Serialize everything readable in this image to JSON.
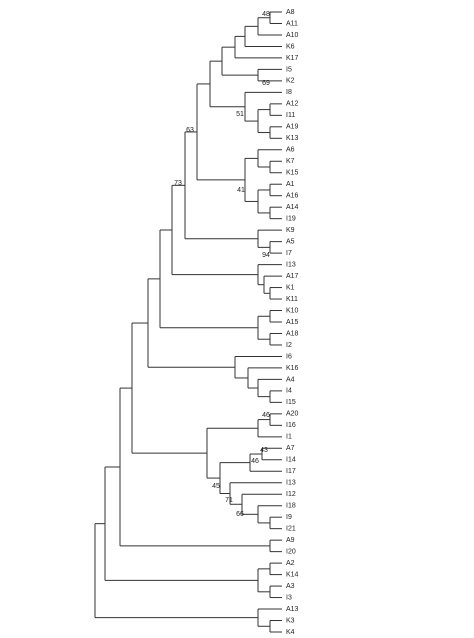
{
  "leaves": [
    "A8",
    "A11",
    "A10",
    "K6",
    "K17",
    "I5",
    "K2",
    "I8",
    "A12",
    "I11",
    "A19",
    "K13",
    "A6",
    "K7",
    "K15",
    "A1",
    "A16",
    "A14",
    "I19",
    "K9",
    "A5",
    "I7",
    "I13",
    "A17",
    "K1",
    "K11",
    "K10",
    "A15",
    "A18",
    "I2",
    "I6",
    "K16",
    "A4",
    "I4",
    "I15",
    "A20",
    "I16",
    "I1",
    "A7",
    "I14",
    "I17",
    "I13",
    "I12",
    "I18",
    "I9",
    "I21",
    "A9",
    "I20",
    "A2",
    "K14",
    "A3",
    "I3",
    "A13",
    "K3",
    "K4"
  ],
  "support_values": [
    48,
    69,
    51,
    63,
    73,
    41,
    94,
    46,
    43,
    46,
    45,
    71,
    66
  ]
}
